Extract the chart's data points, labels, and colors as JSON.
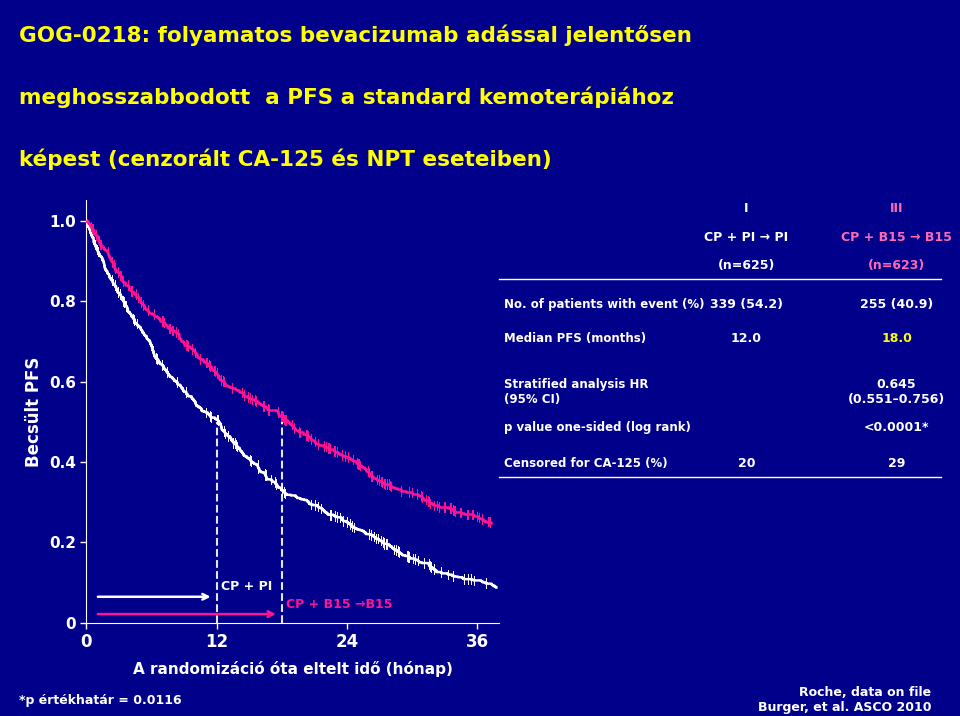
{
  "title_lines": [
    "GOG-0218: folyamatos bevacizumab adással jelentősen",
    "meghosszabbodott  a PFS a standard kemoterápiához",
    "képest (cenzorált CA-125 és NPT eseteiben)"
  ],
  "title_color": "#FFFF00",
  "bg_color": "#00008B",
  "ylabel": "Becsült PFS",
  "xlabel": "A randomizáció óta eltelt idő (hónap)",
  "col1_header_lines": [
    "I",
    "CP + PI → PI",
    "(n=625)"
  ],
  "col2_header_lines": [
    "III",
    "CP + B15 → B15",
    "(n=623)"
  ],
  "col2_header_color": "#FF69B4",
  "col1_header_color": "#FFFFFF",
  "rows": [
    {
      "label": "No. of patients with event (%)",
      "v1": "339 (54.2)",
      "v2": "255 (40.9)",
      "v2_color": "#FFFFFF"
    },
    {
      "label": "Median PFS (months)",
      "v1": "12.0",
      "v2": "18.0",
      "v2_color": "#FFFF00"
    },
    {
      "label": "Stratified analysis HR\n(95% CI)",
      "v1": "",
      "v2": "0.645\n(0.551–0.756)",
      "v2_color": "#FFFFFF"
    },
    {
      "label": "p value one-sided (log rank)",
      "v1": "",
      "v2": "<0.0001*",
      "v2_color": "#FFFFFF"
    },
    {
      "label": "Censored for CA-125 (%)",
      "v1": "20",
      "v2": "29",
      "v2_color": "#FFFFFF"
    }
  ],
  "footnote_left": "*p értékhatár = 0.0116",
  "footnote_right": "Roche, data on file\nBurger, et al. ASCO 2010",
  "cp_pi_median": 12.0,
  "cp_b15_median": 18.0,
  "white_curve_color": "#FFFFFF",
  "pink_curve_color": "#FF1493",
  "label_cp_pi": "CP + PI",
  "label_cp_b15": "CP + B15 →B15",
  "xmax": 38,
  "xticks": [
    0,
    12,
    24,
    36
  ],
  "yticks": [
    0.0,
    0.2,
    0.4,
    0.6,
    0.8,
    1.0
  ],
  "yticklabels": [
    "0",
    "0.2",
    "0.4",
    "0.6",
    "0.8",
    "1.0"
  ]
}
